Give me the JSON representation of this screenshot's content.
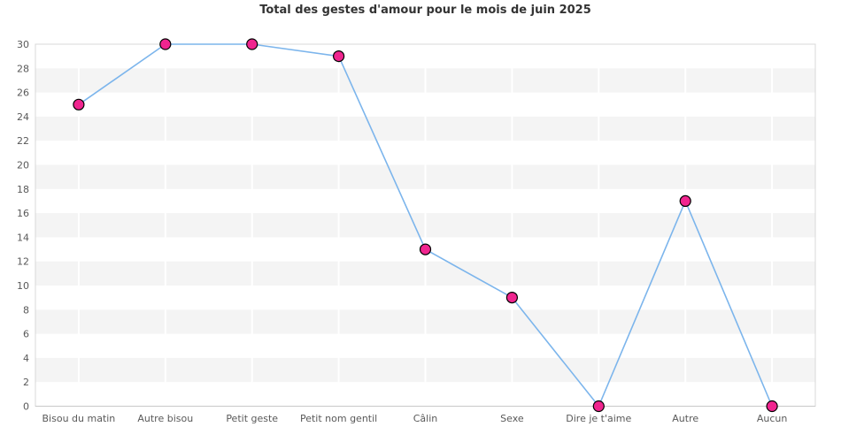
{
  "title": "Total des gestes d'amour pour le mois de juin 2025",
  "chart_data": {
    "type": "line",
    "title": "Total des gestes d'amour pour le mois de juin 2025",
    "categories": [
      "Bisou du matin",
      "Autre bisou",
      "Petit geste",
      "Petit nom gentil",
      "Câlin",
      "Sexe",
      "Dire je t'aime",
      "Autre",
      "Aucun"
    ],
    "values": [
      25,
      30,
      30,
      29,
      13,
      9,
      0,
      17,
      0
    ],
    "xlabel": "",
    "ylabel": "",
    "ylim": [
      0,
      30
    ],
    "ytick_step": 2,
    "yticks": [
      0,
      2,
      4,
      6,
      8,
      10,
      12,
      14,
      16,
      18,
      20,
      22,
      24,
      26,
      28,
      30
    ],
    "legend": "none",
    "grid": "alternating-horizontal-bands",
    "colors": {
      "line": "#7cb5ec",
      "marker_fill": "#f0258f",
      "marker_stroke": "#000000",
      "band": "#f4f4f4",
      "grid_line": "#ffffff",
      "plot_border": "#d8d8d8",
      "axis_line": "#c9c9c9",
      "axis_label": "#595959",
      "title": "#333333",
      "background": "#ffffff"
    }
  }
}
